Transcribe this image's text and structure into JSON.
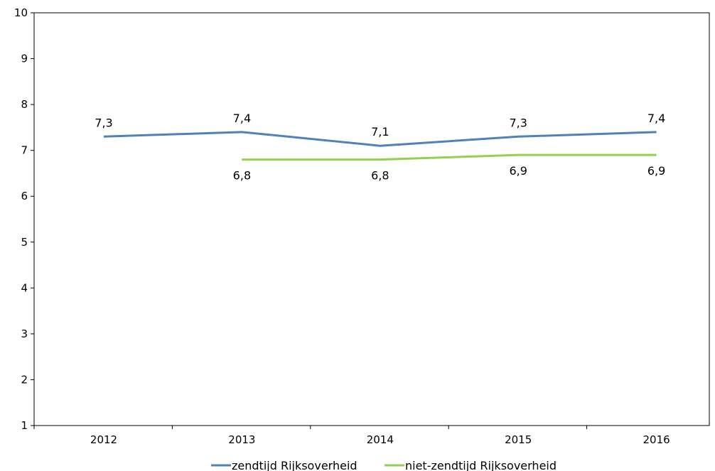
{
  "chart_data": {
    "type": "line",
    "title": "",
    "xlabel": "",
    "ylabel": "",
    "categories": [
      "2012",
      "2013",
      "2014",
      "2015",
      "2016"
    ],
    "ylim": [
      1,
      10
    ],
    "yticks": [
      "1",
      "2",
      "3",
      "4",
      "5",
      "6",
      "7",
      "8",
      "9",
      "10"
    ],
    "grid": false,
    "legend_position": "bottom",
    "series": [
      {
        "name": "zendtijd Rijksoverheid",
        "color": "#4F81BD",
        "values": [
          7.3,
          7.4,
          7.1,
          7.3,
          7.4
        ],
        "labels": [
          "7,3",
          "7,4",
          "7,1",
          "7,3",
          "7,4"
        ],
        "label_position": "above"
      },
      {
        "name": "niet-zendtijd Rijksoverheid",
        "color": "#92D050",
        "values": [
          null,
          6.8,
          6.8,
          6.9,
          6.9
        ],
        "labels": [
          "",
          "6,8",
          "6,8",
          "6,9",
          "6,9"
        ],
        "label_position": "below"
      }
    ]
  }
}
